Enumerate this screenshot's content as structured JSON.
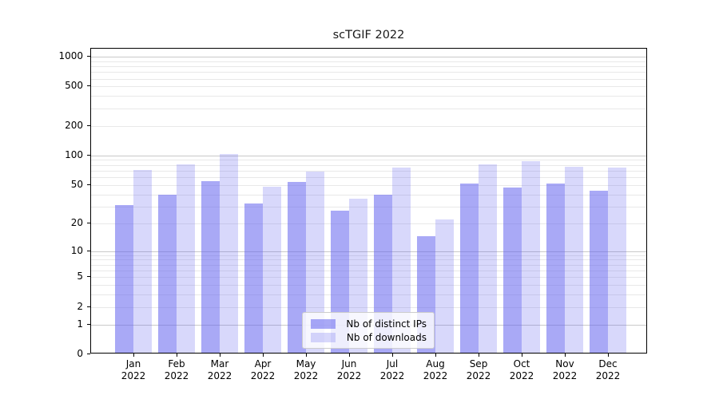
{
  "chart_data": {
    "type": "bar",
    "title": "scTGIF 2022",
    "categories": [
      "Jan 2022",
      "Feb 2022",
      "Mar 2022",
      "Apr 2022",
      "May 2022",
      "Jun 2022",
      "Jul 2022",
      "Aug 2022",
      "Sep 2022",
      "Oct 2022",
      "Nov 2022",
      "Dec 2022"
    ],
    "series": [
      {
        "name": "Nb of distinct IPs",
        "color": "rgba(98,98,238,0.55)",
        "values": [
          30,
          38,
          53,
          31,
          52,
          26,
          38,
          14,
          50,
          45,
          50,
          42
        ]
      },
      {
        "name": "Nb of downloads",
        "color": "rgba(98,98,238,0.25)",
        "values": [
          68,
          78,
          100,
          46,
          66,
          35,
          73,
          21,
          78,
          85,
          74,
          72
        ]
      }
    ],
    "yscale": "log1p",
    "yticks": [
      0,
      1,
      2,
      5,
      10,
      20,
      50,
      100,
      200,
      500,
      1000
    ],
    "ylim": [
      0,
      1200
    ],
    "grid": true,
    "legend_position": "lower center"
  },
  "colors": {
    "grid_major": "#c9c9c9",
    "grid_minor": "#e8e8e8",
    "axis": "#000000",
    "title_text": "#1a1a1a"
  }
}
